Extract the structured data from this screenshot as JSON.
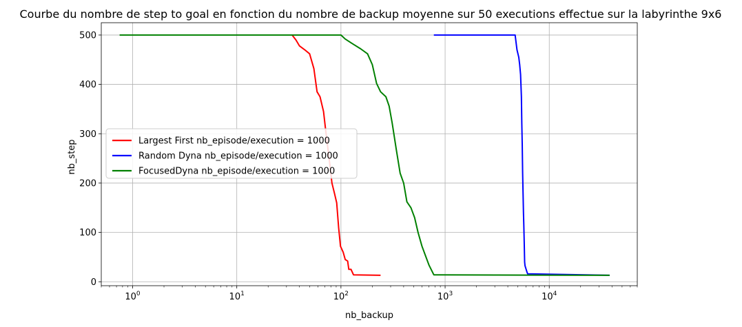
{
  "chart_data": {
    "type": "line",
    "title": "Courbe du nombre de step to goal en fonction du nombre de backup moyenne sur 50 executions effectue sur la labyrinthe 9x6",
    "xlabel": "nb_backup",
    "ylabel": "nb_step",
    "xscale": "log",
    "xlim": [
      0.5,
      70000
    ],
    "ylim": [
      -8,
      525
    ],
    "grid": true,
    "legend_position": "center-left",
    "x_ticks": [
      {
        "base": "10",
        "exp": "0",
        "value": 1
      },
      {
        "base": "10",
        "exp": "1",
        "value": 10
      },
      {
        "base": "10",
        "exp": "2",
        "value": 100
      },
      {
        "base": "10",
        "exp": "3",
        "value": 1000
      },
      {
        "base": "10",
        "exp": "4",
        "value": 10000
      }
    ],
    "y_ticks": [
      {
        "label": "0",
        "value": 0
      },
      {
        "label": "100",
        "value": 100
      },
      {
        "label": "200",
        "value": 200
      },
      {
        "label": "300",
        "value": 300
      },
      {
        "label": "400",
        "value": 400
      },
      {
        "label": "500",
        "value": 500
      }
    ],
    "series": [
      {
        "name": "Largest First nb_episode/execution = 1000",
        "color": "#ff0000",
        "points": [
          [
            34,
            500
          ],
          [
            37,
            490
          ],
          [
            40,
            478
          ],
          [
            45,
            470
          ],
          [
            50,
            462
          ],
          [
            55,
            432
          ],
          [
            59,
            385
          ],
          [
            63,
            375
          ],
          [
            68,
            345
          ],
          [
            72,
            300
          ],
          [
            77,
            250
          ],
          [
            82,
            200
          ],
          [
            87,
            178
          ],
          [
            91,
            160
          ],
          [
            95,
            110
          ],
          [
            99,
            72
          ],
          [
            105,
            60
          ],
          [
            110,
            45
          ],
          [
            116,
            42
          ],
          [
            119,
            25
          ],
          [
            125,
            25
          ],
          [
            132,
            14
          ],
          [
            240,
            13
          ]
        ]
      },
      {
        "name": "Random Dyna nb_episode/execution = 1000",
        "color": "#0000ff",
        "points": [
          [
            780,
            500
          ],
          [
            4700,
            500
          ],
          [
            4900,
            470
          ],
          [
            5100,
            455
          ],
          [
            5200,
            440
          ],
          [
            5300,
            420
          ],
          [
            5400,
            375
          ],
          [
            5450,
            320
          ],
          [
            5500,
            280
          ],
          [
            5550,
            220
          ],
          [
            5600,
            180
          ],
          [
            5650,
            140
          ],
          [
            5700,
            115
          ],
          [
            5750,
            80
          ],
          [
            5800,
            40
          ],
          [
            5850,
            33
          ],
          [
            5900,
            30
          ],
          [
            6000,
            25
          ],
          [
            6100,
            20
          ],
          [
            6200,
            16
          ],
          [
            38000,
            13
          ]
        ]
      },
      {
        "name": "FocusedDyna nb_episode/execution = 1000",
        "color": "#008000",
        "points": [
          [
            0.75,
            500
          ],
          [
            100,
            500
          ],
          [
            110,
            492
          ],
          [
            130,
            482
          ],
          [
            155,
            472
          ],
          [
            180,
            462
          ],
          [
            200,
            440
          ],
          [
            220,
            402
          ],
          [
            240,
            385
          ],
          [
            270,
            375
          ],
          [
            290,
            356
          ],
          [
            310,
            322
          ],
          [
            340,
            268
          ],
          [
            370,
            220
          ],
          [
            400,
            200
          ],
          [
            430,
            162
          ],
          [
            470,
            150
          ],
          [
            510,
            130
          ],
          [
            550,
            100
          ],
          [
            600,
            72
          ],
          [
            650,
            52
          ],
          [
            700,
            34
          ],
          [
            780,
            14
          ],
          [
            38000,
            13
          ]
        ]
      }
    ]
  }
}
